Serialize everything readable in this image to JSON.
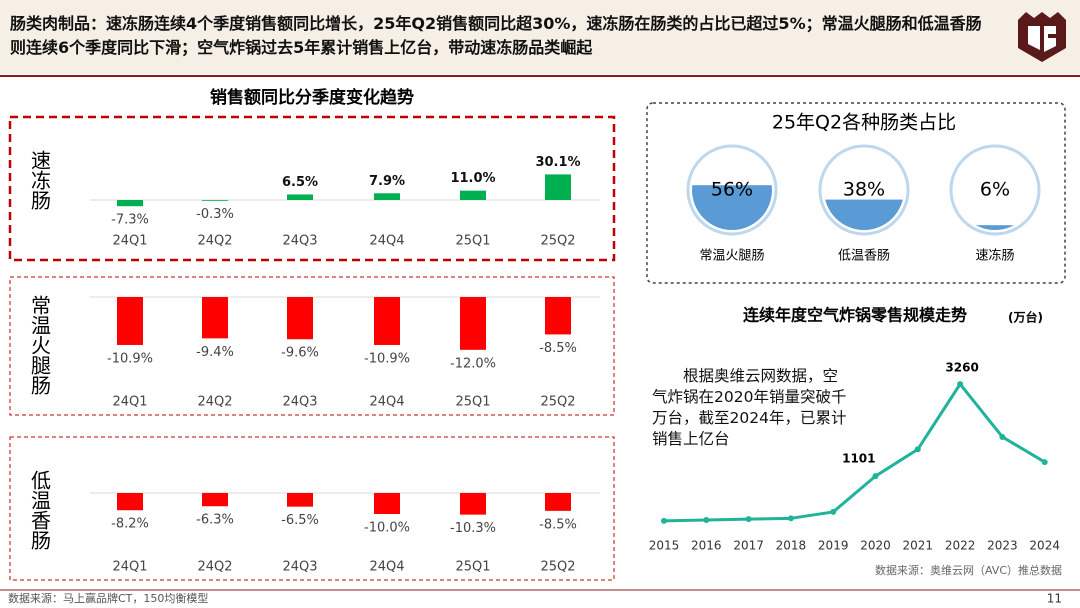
{
  "header": "肠类肉制品：速冻肠连续4个季度销售额同比增长，25年Q2销售额同比超30%，速冻肠在肠类的占比已超过5%；常温火腿肠和低温香肠则连续6个季度同比下滑；空气炸锅过去5年累计销售上亿台，带动速冻肠品类崛起",
  "footer": "数据来源：马上赢品牌CT，150均衡模型",
  "page_number": "11",
  "chart_data": [
    {
      "type": "bar",
      "title": "销售额同比分季度变化趋势",
      "label": "速冻肠",
      "color": "#00b050",
      "categories": [
        "24Q1",
        "24Q2",
        "24Q3",
        "24Q4",
        "25Q1",
        "25Q2"
      ],
      "values": [
        -7.3,
        -0.3,
        6.5,
        7.9,
        11.0,
        30.1
      ],
      "value_labels": [
        "-7.3%",
        "-0.3%",
        "6.5%",
        "7.9%",
        "11.0%",
        "30.1%"
      ]
    },
    {
      "type": "bar",
      "label": "常温火腿肠",
      "color": "#ff0000",
      "categories": [
        "24Q1",
        "24Q2",
        "24Q3",
        "24Q4",
        "25Q1",
        "25Q2"
      ],
      "values": [
        -10.9,
        -9.4,
        -9.6,
        -10.9,
        -12.0,
        -8.5
      ],
      "value_labels": [
        "-10.9%",
        "-9.4%",
        "-9.6%",
        "-10.9%",
        "-12.0%",
        "-8.5%"
      ]
    },
    {
      "type": "bar",
      "label": "低温香肠",
      "color": "#ff0000",
      "categories": [
        "24Q1",
        "24Q2",
        "24Q3",
        "24Q4",
        "25Q1",
        "25Q2"
      ],
      "values": [
        -8.2,
        -6.3,
        -6.5,
        -10.0,
        -10.3,
        -8.5
      ],
      "value_labels": [
        "-8.2%",
        "-6.3%",
        "-6.5%",
        "-10.0%",
        "-10.3%",
        "-8.5%"
      ]
    },
    {
      "type": "liquid",
      "title": "25年Q2各种肠类占比",
      "color": "#5b9bd5",
      "categories": [
        "常温火腿肠",
        "低温香肠",
        "速冻肠"
      ],
      "values": [
        56,
        38,
        6
      ],
      "value_labels": [
        "56%",
        "38%",
        "6%"
      ]
    },
    {
      "type": "line",
      "title": "连续年度空气炸锅零售规模走势",
      "unit": "(万台)",
      "color": "#1fb39a",
      "categories": [
        "2015",
        "2016",
        "2017",
        "2018",
        "2019",
        "2020",
        "2021",
        "2022",
        "2023",
        "2024"
      ],
      "values": [
        50,
        70,
        90,
        110,
        260,
        1101,
        1730,
        3260,
        2020,
        1430
      ],
      "value_labels": [
        null,
        null,
        null,
        null,
        null,
        "1101",
        null,
        "3260",
        null,
        null
      ],
      "annotation": "根据奥维云网数据，空气炸锅在2020年销量突破千万台，截至2024年，已累计销售上亿台",
      "source": "数据来源：奥维云网（AVC）推总数据"
    }
  ]
}
